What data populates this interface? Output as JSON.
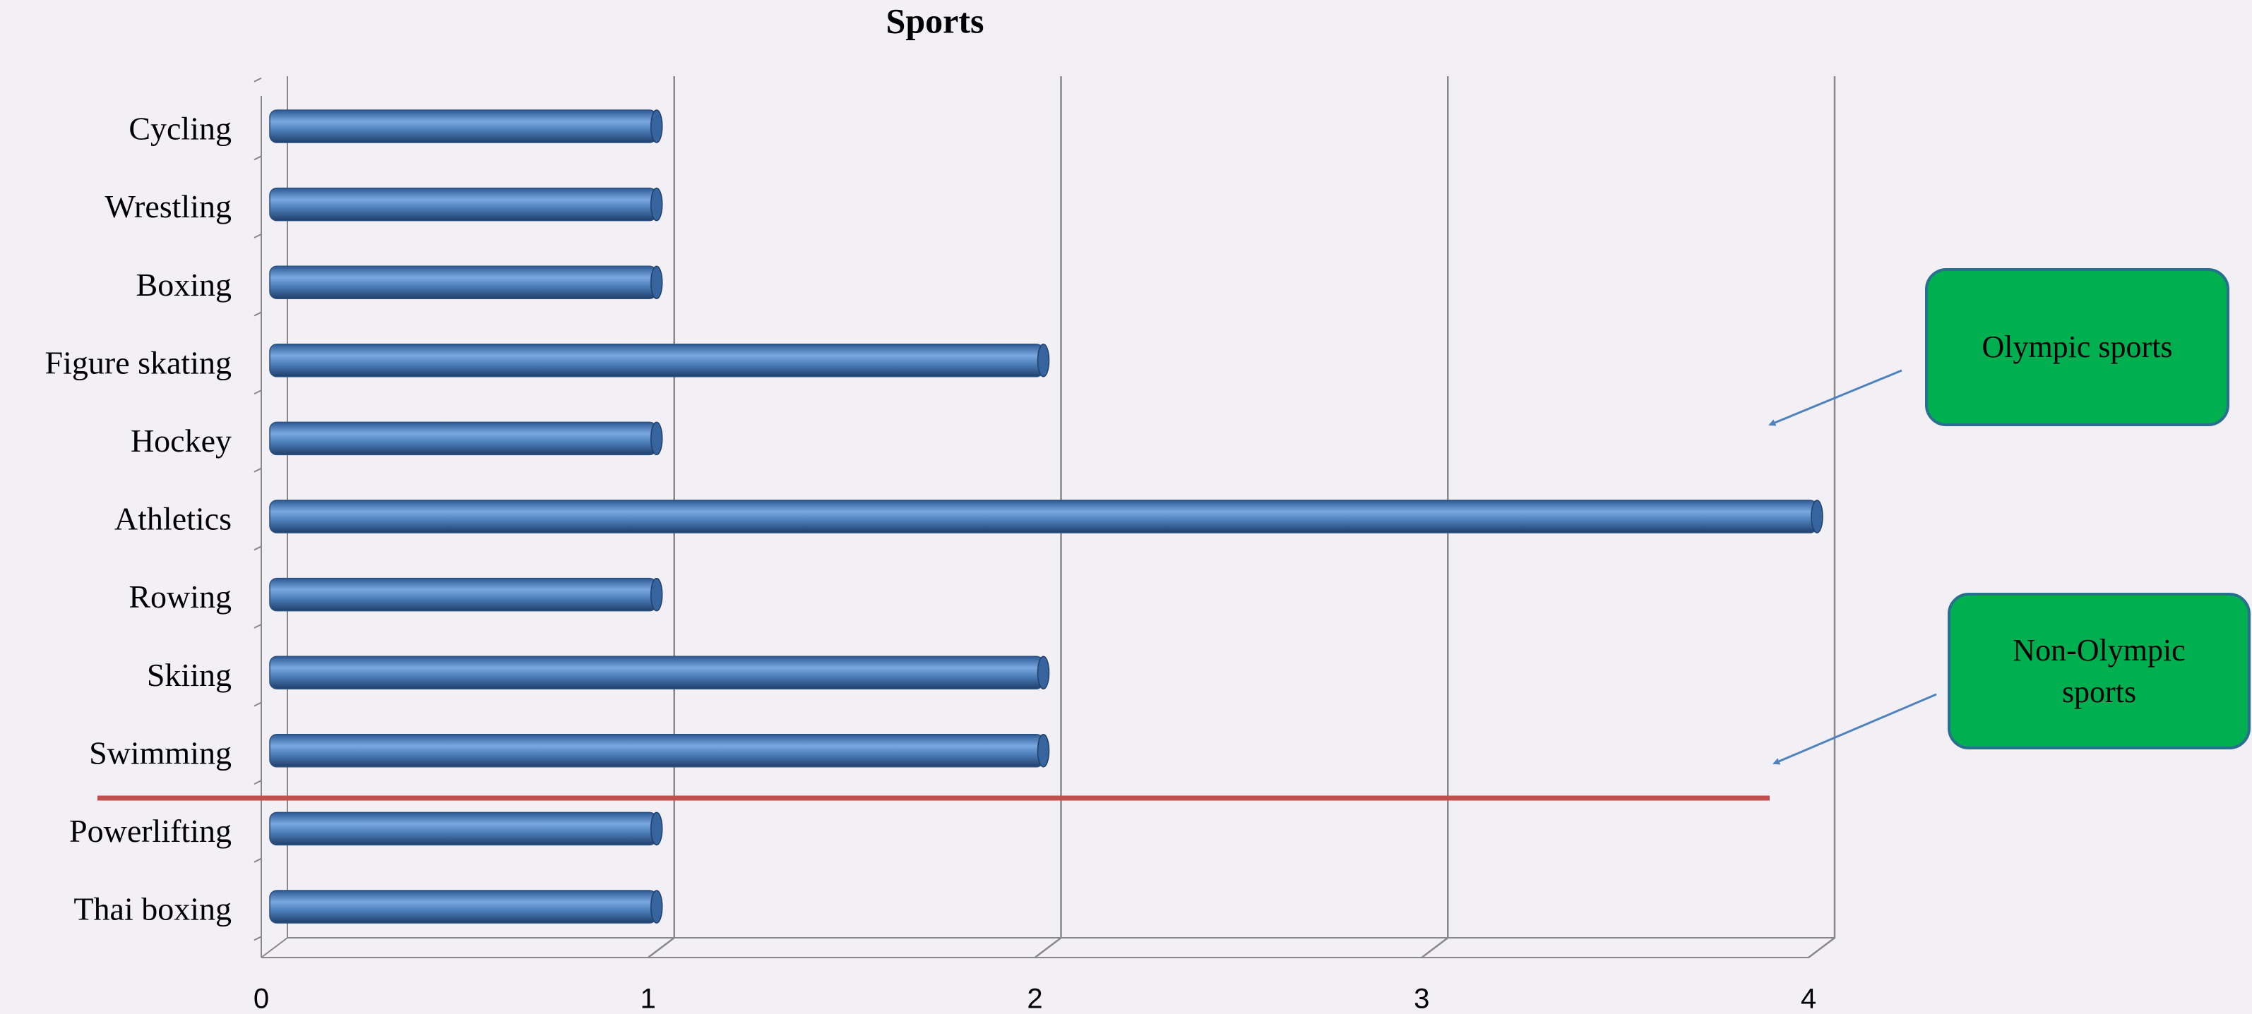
{
  "chart_data": {
    "type": "bar",
    "orientation": "horizontal",
    "title": "Sports",
    "categories": [
      "Cycling",
      "Wrestling",
      "Boxing",
      "Figure skating",
      "Hockey",
      "Athletics",
      "Rowing",
      "Skiing",
      "Swimming",
      "Powerlifting",
      "Thai boxing"
    ],
    "values": [
      1,
      1,
      1,
      2,
      1,
      4,
      1,
      2,
      2,
      1,
      1
    ],
    "color": "#4f81bd",
    "xlim": [
      0,
      4
    ],
    "xticks": [
      0,
      1,
      2,
      3,
      4
    ],
    "grid": true,
    "annotations": [
      "Olympic sports",
      "Non-Olympic sports"
    ]
  }
}
